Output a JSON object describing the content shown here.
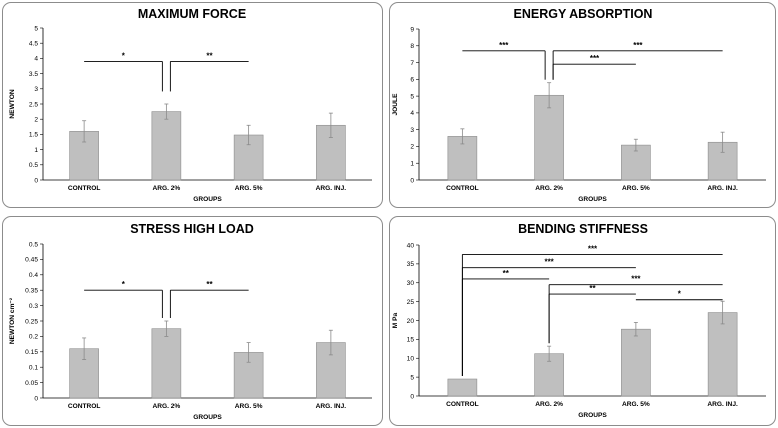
{
  "chart_data": [
    {
      "type": "bar",
      "title": "MAXIMUM FORCE",
      "xlabel": "GROUPS",
      "ylabel": "NEWTON",
      "ylim": [
        0,
        5
      ],
      "yticks": [
        "0",
        "0.5",
        "1",
        "1.5",
        "2",
        "2.5",
        "3",
        "3.5",
        "4",
        "4.5",
        "5"
      ],
      "categories": [
        "CONTROL",
        "ARG. 2%",
        "ARG. 5%",
        "ARG.  INJ."
      ],
      "values": [
        1.6,
        2.25,
        1.48,
        1.8
      ],
      "errors": [
        0.35,
        0.25,
        0.32,
        0.4
      ],
      "significance": [
        {
          "from": 0,
          "to": 1,
          "label": "*",
          "level": 3.9
        },
        {
          "from": 1,
          "to": 2,
          "label": "**",
          "level": 3.9
        }
      ]
    },
    {
      "type": "bar",
      "title": "ENERGY ABSORPTION",
      "xlabel": "GROUPS",
      "ylabel": "JOULE",
      "ylim": [
        0,
        9
      ],
      "yticks": [
        "0",
        "1",
        "2",
        "3",
        "4",
        "5",
        "6",
        "7",
        "8",
        "9"
      ],
      "categories": [
        "CONTROL",
        "ARG. 2%",
        "ARG. 5%",
        "ARG.  INJ."
      ],
      "values": [
        2.6,
        5.05,
        2.08,
        2.25
      ],
      "errors": [
        0.45,
        0.75,
        0.35,
        0.6
      ],
      "significance": [
        {
          "from": 0,
          "to": 1,
          "label": "***",
          "level": 7.7
        },
        {
          "from": 1,
          "to": 3,
          "label": "***",
          "level": 7.7
        },
        {
          "from": 1,
          "to": 2,
          "label": "***",
          "level": 6.9
        }
      ]
    },
    {
      "type": "bar",
      "title": "STRESS HIGH LOAD",
      "xlabel": "GROUPS",
      "ylabel": "NEWTON cm⁻²",
      "ylim": [
        0,
        0.5
      ],
      "yticks": [
        "0",
        "0.05",
        "0.1",
        "0.15",
        "0.2",
        "0.25",
        "0.3",
        "0.35",
        "0.4",
        "0.45",
        "0.5"
      ],
      "categories": [
        "CONTROL",
        "ARG. 2%",
        "ARG. 5%",
        "ARG.  INJ."
      ],
      "values": [
        0.16,
        0.225,
        0.148,
        0.18
      ],
      "errors": [
        0.035,
        0.025,
        0.032,
        0.04
      ],
      "significance": [
        {
          "from": 0,
          "to": 1,
          "label": "*",
          "level": 0.35
        },
        {
          "from": 1,
          "to": 2,
          "label": "**",
          "level": 0.35
        }
      ]
    },
    {
      "type": "bar",
      "title": "BENDING STIFFNESS",
      "xlabel": "GROUPS",
      "ylabel": "M Pa",
      "ylim": [
        0,
        40
      ],
      "yticks": [
        "0",
        "5",
        "10",
        "15",
        "20",
        "25",
        "30",
        "35",
        "40"
      ],
      "categories": [
        "CONTROL",
        "ARG. 2%",
        "ARG. 5%",
        "ARG.  INJ."
      ],
      "values": [
        4.5,
        11.2,
        17.7,
        22.1
      ],
      "errors": [
        0,
        2.0,
        1.8,
        3.0
      ],
      "significance": [
        {
          "from": 0,
          "to": 3,
          "label": "***",
          "level": 37.5
        },
        {
          "from": 0,
          "to": 2,
          "label": "***",
          "level": 34
        },
        {
          "from": 0,
          "to": 1,
          "label": "**",
          "level": 31
        },
        {
          "from": 1,
          "to": 3,
          "label": "***",
          "level": 29.5
        },
        {
          "from": 1,
          "to": 2,
          "label": "**",
          "level": 27
        },
        {
          "from": 2,
          "to": 3,
          "label": "*",
          "level": 25.5
        }
      ]
    }
  ],
  "style": {
    "bar_fill": "#bfbfbf",
    "bar_stroke": "#8c8c8c",
    "panel_border": "#8c8c8c",
    "error_color": "#8a8a8a",
    "text_color": "#000000"
  }
}
